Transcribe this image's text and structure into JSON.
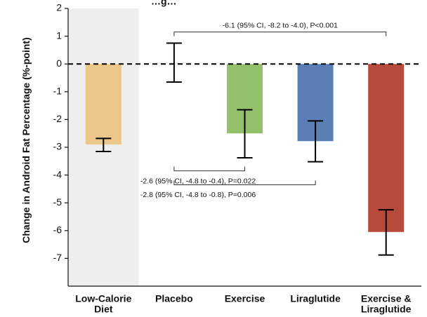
{
  "chart_data": {
    "type": "bar",
    "title": "…g…",
    "ylabel": "Change in Android Fat Percentage (%-point)",
    "ylim": [
      -8,
      2
    ],
    "yticks": [
      2,
      1,
      0,
      -1,
      -2,
      -3,
      -4,
      -5,
      -6,
      -7
    ],
    "categories": [
      [
        "Low-Calorie",
        "Diet"
      ],
      [
        "Placebo"
      ],
      [
        "Exercise"
      ],
      [
        "Liraglutide"
      ],
      [
        "Exercise &",
        "Liraglutide"
      ]
    ],
    "values": [
      -2.9,
      0.05,
      -2.5,
      -2.78,
      -6.05
    ],
    "error_low": [
      -3.15,
      -0.65,
      -3.38,
      -3.52,
      -6.88
    ],
    "error_high": [
      -2.68,
      0.75,
      -1.65,
      -2.05,
      -5.25
    ],
    "colors": [
      "#ebc88a",
      "#ececec",
      "#93c06a",
      "#5a7fb5",
      "#b84a3c"
    ],
    "shaded_region_color": "#eeeeee",
    "reference_line": {
      "y": 0,
      "style": "dashed"
    },
    "annotations": [
      {
        "text": "-6.1 (95% CI, -8.2 to -4.0), P<0.001",
        "from": 1,
        "to": 4,
        "y": 1.15,
        "tick_dir": "down"
      },
      {
        "text": "-2.6 (95% CI, -4.8 to -0.4), P=0.022",
        "from": 1,
        "to": 2,
        "y": -3.85,
        "tick_dir": "up"
      },
      {
        "text": "-2.8 (95% CI, -4.8 to -0.8), P=0.006",
        "from": 1,
        "to": 3,
        "y": -4.35,
        "tick_dir": "up"
      }
    ]
  }
}
